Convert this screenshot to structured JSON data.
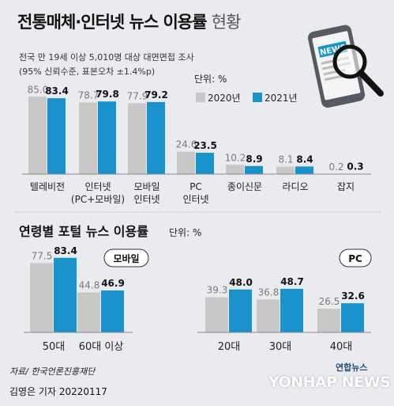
{
  "title": {
    "main": "전통매체·인터넷 뉴스 이용률",
    "suffix": "현황"
  },
  "subtitle": {
    "line1": "전국 만 19세 이상 5,010명 대상 대면면접 조사",
    "line2": "(95% 신뢰수준, 표본오차 ±1.4%p)"
  },
  "source": "자료/ 한국언론진흥재단",
  "credit": "김영은 기자  20220117",
  "agency": {
    "kr": "연합뉴스",
    "en": "YONHAP NEWS"
  },
  "illustration": {
    "label": "NEWS",
    "icon": "smartphone-with-magnifier-icon"
  },
  "colors": {
    "background": "#e9ebee",
    "series_2020": "#c8c8c8",
    "series_2021": "#1a92cc",
    "label_2020": "#7a7a7a",
    "label_2021": "#111111"
  },
  "chart_data": [
    {
      "type": "bar",
      "title": "전통매체·인터넷 뉴스 이용률 현황",
      "unit": "단위: %",
      "categories": [
        "텔레비전",
        "인터넷\n(PC+모바일)",
        "모바일\n인터넷",
        "PC\n인터넷",
        "종이신문",
        "라디오",
        "잡지"
      ],
      "series": [
        {
          "name": "2020년",
          "values": [
            85.0,
            78.7,
            77.9,
            24.6,
            10.2,
            8.1,
            0.2
          ]
        },
        {
          "name": "2021년",
          "values": [
            83.4,
            79.8,
            79.2,
            23.5,
            8.9,
            8.4,
            0.3
          ]
        }
      ],
      "ylim": [
        0,
        100
      ],
      "grid": false,
      "legend": "top-right"
    },
    {
      "type": "bar",
      "title": "연령별 포털 뉴스 이용률",
      "unit": "단위: %",
      "panel": "모바일",
      "categories": [
        "50대",
        "60대 이상"
      ],
      "series": [
        {
          "name": "2020년",
          "values": [
            77.5,
            44.8
          ]
        },
        {
          "name": "2021년",
          "values": [
            83.4,
            46.9
          ]
        }
      ],
      "ylim": [
        0,
        100
      ],
      "grid": false
    },
    {
      "type": "bar",
      "title": "연령별 포털 뉴스 이용률",
      "unit": "단위: %",
      "panel": "PC",
      "categories": [
        "20대",
        "30대",
        "40대"
      ],
      "series": [
        {
          "name": "2020년",
          "values": [
            39.3,
            36.8,
            26.5
          ]
        },
        {
          "name": "2021년",
          "values": [
            48.0,
            48.7,
            32.6
          ]
        }
      ],
      "ylim": [
        0,
        100
      ],
      "grid": false
    }
  ]
}
